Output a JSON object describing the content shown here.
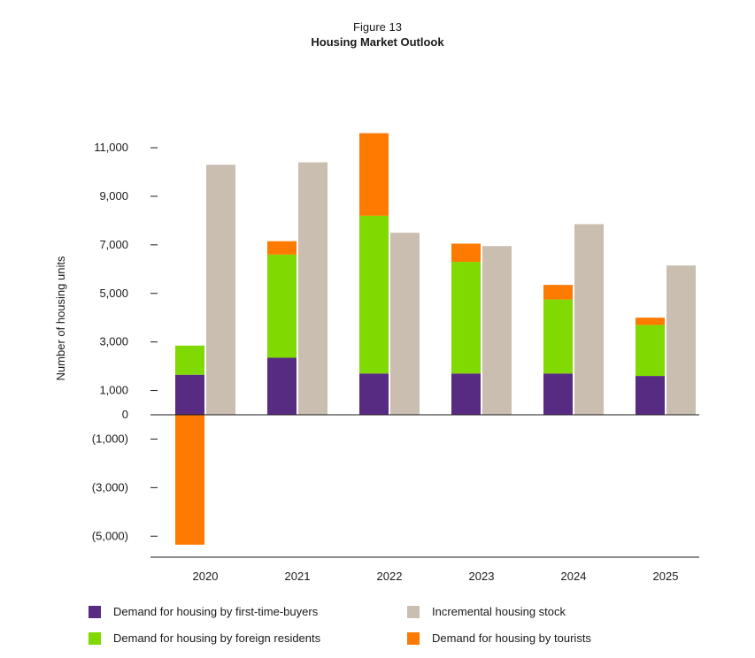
{
  "figure": {
    "label": "Figure 13",
    "title": "Housing Market Outlook"
  },
  "chart_data": {
    "type": "bar",
    "title": "Housing Market Outlook",
    "xlabel": "",
    "ylabel": "Number of housing units",
    "categories": [
      "2020",
      "2021",
      "2022",
      "2023",
      "2024",
      "2025"
    ],
    "ylim": [
      -5900,
      12200
    ],
    "y_ticks": [
      11000,
      9000,
      7000,
      5000,
      3000,
      1000,
      0,
      -1000,
      -3000,
      -5000
    ],
    "y_tick_labels": [
      "11,000",
      "9,000",
      "7,000",
      "5,000",
      "3,000",
      "1,000",
      "0",
      "(1,000)",
      "(3,000)",
      "(5,000)"
    ],
    "grid": false,
    "legend_position": "bottom",
    "stacked_series": [
      {
        "name": "Demand for housing by first-time-buyers",
        "color": "#582b83",
        "values": [
          1650,
          2350,
          1700,
          1700,
          1700,
          1600
        ]
      },
      {
        "name": "Demand for housing by foreign residents",
        "color": "#80d900",
        "values": [
          1200,
          4250,
          6500,
          4600,
          3050,
          2100
        ]
      },
      {
        "name": "Demand for housing by tourists",
        "color": "#ff7a00",
        "values": [
          -5350,
          550,
          3400,
          750,
          600,
          300
        ]
      }
    ],
    "standalone_series": [
      {
        "name": "Incremental housing stock",
        "color": "#c9beb0",
        "values": [
          10300,
          10400,
          7500,
          6950,
          7850,
          6150
        ]
      }
    ]
  },
  "legend": {
    "items": [
      {
        "label": "Demand for housing by first-time-buyers",
        "color": "#582b83"
      },
      {
        "label": "Incremental housing stock",
        "color": "#c9beb0"
      },
      {
        "label": "Demand for housing by foreign residents",
        "color": "#80d900"
      },
      {
        "label": "Demand for housing by tourists",
        "color": "#ff7a00"
      }
    ]
  }
}
